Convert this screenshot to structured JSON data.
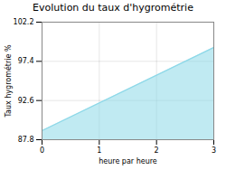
{
  "chart_data": {
    "type": "area",
    "title": "Evolution du taux d'hygrométrie",
    "xlabel": "heure par heure",
    "ylabel": "Taux hygrométrie %",
    "x": [
      0,
      3
    ],
    "values": [
      88.9,
      99.1
    ],
    "color": "#8dd8e8",
    "xlim": [
      0,
      3
    ],
    "ylim": [
      87.8,
      102.2
    ],
    "xticks": [
      0,
      1,
      2,
      3
    ],
    "yticks": [
      87.8,
      92.6,
      97.4,
      102.2
    ],
    "grid": true
  }
}
